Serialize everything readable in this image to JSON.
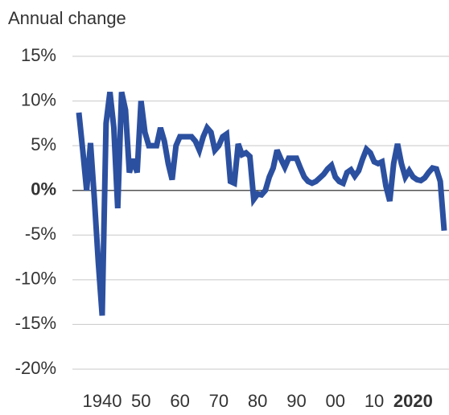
{
  "chart_data": {
    "type": "line",
    "title": "Annual change",
    "x": [
      1934,
      1935,
      1936,
      1937,
      1938,
      1939,
      1940,
      1941,
      1942,
      1943,
      1944,
      1945,
      1946,
      1947,
      1948,
      1949,
      1950,
      1951,
      1952,
      1953,
      1954,
      1955,
      1956,
      1957,
      1958,
      1959,
      1960,
      1961,
      1962,
      1963,
      1964,
      1965,
      1966,
      1967,
      1968,
      1969,
      1970,
      1971,
      1972,
      1973,
      1974,
      1975,
      1976,
      1977,
      1978,
      1979,
      1980,
      1981,
      1982,
      1983,
      1984,
      1985,
      1986,
      1987,
      1988,
      1989,
      1990,
      1991,
      1992,
      1993,
      1994,
      1995,
      1996,
      1997,
      1998,
      1999,
      2000,
      2001,
      2002,
      2003,
      2004,
      2005,
      2006,
      2007,
      2008,
      2009,
      2010,
      2011,
      2012,
      2013,
      2014,
      2015,
      2016,
      2017,
      2018,
      2019,
      2020,
      2021,
      2022,
      2023,
      2024,
      2025,
      2026,
      2027,
      2028
    ],
    "series": [
      {
        "name": "Annual change",
        "color": "#2c50a0",
        "values": [
          8.7,
          4.5,
          0,
          5.3,
          -1,
          -8,
          -14,
          7.5,
          11,
          7,
          -2,
          11,
          9,
          2,
          3.5,
          2,
          10,
          6.5,
          5,
          5,
          5,
          7,
          5.5,
          3,
          1.2,
          5,
          6,
          6,
          6,
          6,
          5.5,
          4.5,
          6,
          7,
          6.5,
          4.5,
          5,
          6,
          6.3,
          1,
          0.8,
          5.2,
          4,
          4.2,
          3.8,
          -1,
          -0.4,
          -0.5,
          0,
          1.5,
          2.5,
          4.5,
          3.5,
          2.6,
          3.6,
          3.6,
          3.6,
          2.5,
          1.5,
          1,
          0.8,
          1,
          1.4,
          1.8,
          2.4,
          2.8,
          1.5,
          1,
          0.8,
          2,
          2.3,
          1.6,
          2.2,
          3.5,
          4.6,
          4.2,
          3.2,
          3,
          3.2,
          0.5,
          -1.2,
          3,
          5.2,
          3,
          1.5,
          2.2,
          1.5,
          1.2,
          1.1,
          1.4,
          2,
          2.5,
          2.4,
          1,
          -4.5
        ]
      }
    ],
    "xlim": [
      1934,
      2028
    ],
    "xticks": [
      1940,
      {
        "value": 1950,
        "label": "50"
      },
      {
        "value": 1960,
        "label": "60"
      },
      {
        "value": 1970,
        "label": "70"
      },
      {
        "value": 1980,
        "label": "80"
      },
      {
        "value": 1990,
        "label": "90"
      },
      {
        "value": 2000,
        "label": "00"
      },
      {
        "value": 2010,
        "label": "10"
      },
      2020
    ],
    "ylim": [
      -20,
      15
    ],
    "yticks": [
      {
        "value": 15,
        "label": "15%"
      },
      {
        "value": 10,
        "label": "10%"
      },
      {
        "value": 5,
        "label": "5%"
      },
      {
        "value": 0,
        "label": "0%"
      },
      {
        "value": -5,
        "label": "-5%"
      },
      {
        "value": -10,
        "label": "-10%"
      },
      {
        "value": -15,
        "label": "-15%"
      },
      {
        "value": -20,
        "label": "-20%"
      }
    ],
    "grid": true
  }
}
